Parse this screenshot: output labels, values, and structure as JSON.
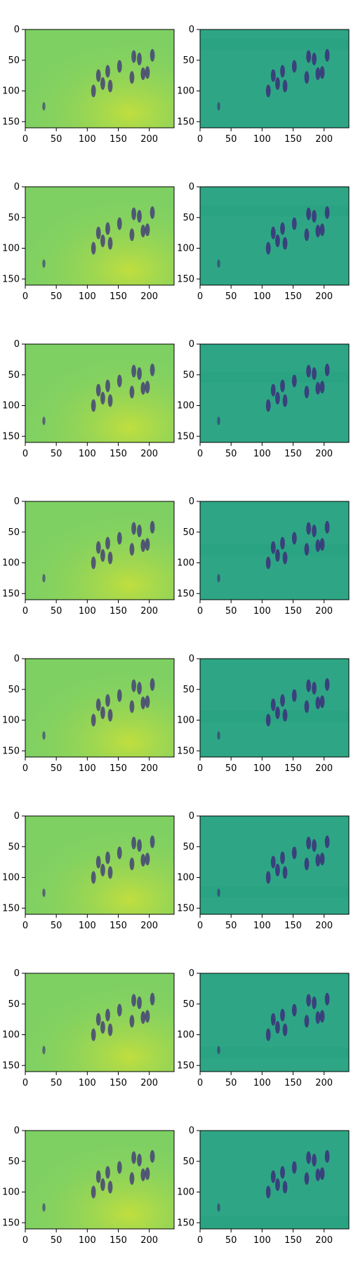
{
  "chart_data": {
    "type": "heatmap",
    "layout": {
      "rows": 8,
      "cols": 2
    },
    "colormap": "viridis",
    "x_ticks": [
      0,
      50,
      100,
      150,
      200
    ],
    "y_ticks": [
      0,
      50,
      100,
      150
    ],
    "xlim": [
      0,
      240
    ],
    "ylim": [
      160,
      0
    ],
    "image_size": {
      "width": 240,
      "height": 160
    },
    "left_image_base_color": "#7ed063",
    "right_image_base_color": "#2ea685",
    "mark_color": "#3b2f7a",
    "band_y_positions": [
      15,
      30,
      45,
      70,
      85,
      115,
      120,
      140
    ],
    "band_height": 18,
    "people_positions": [
      {
        "x": 110,
        "y": 100
      },
      {
        "x": 118,
        "y": 75
      },
      {
        "x": 125,
        "y": 88
      },
      {
        "x": 133,
        "y": 68
      },
      {
        "x": 137,
        "y": 92
      },
      {
        "x": 152,
        "y": 60
      },
      {
        "x": 172,
        "y": 78
      },
      {
        "x": 184,
        "y": 48
      },
      {
        "x": 190,
        "y": 72
      },
      {
        "x": 197,
        "y": 70
      },
      {
        "x": 175,
        "y": 44
      },
      {
        "x": 205,
        "y": 42
      }
    ]
  }
}
